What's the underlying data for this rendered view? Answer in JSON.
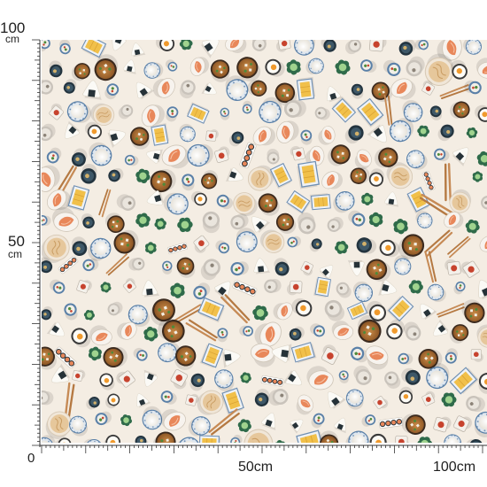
{
  "ruler": {
    "vertical": {
      "top_value": "100",
      "top_unit": "cm",
      "mid_value": "50",
      "mid_unit": "cm",
      "origin": "0"
    },
    "horizontal": {
      "mid_label": "50cm",
      "end_label": "100cm"
    }
  },
  "pattern": {
    "description_colors": {
      "background": "#f4ede3",
      "rice": "#f7f6f1",
      "salmon": "#e8875a",
      "tamago": "#f1c04a",
      "nori": "#263238",
      "blue_plate": "#5a80a8",
      "green": "#4f8a3a",
      "wood": "#c68a55",
      "soup": "#a86d33",
      "red": "#c7432e"
    }
  }
}
